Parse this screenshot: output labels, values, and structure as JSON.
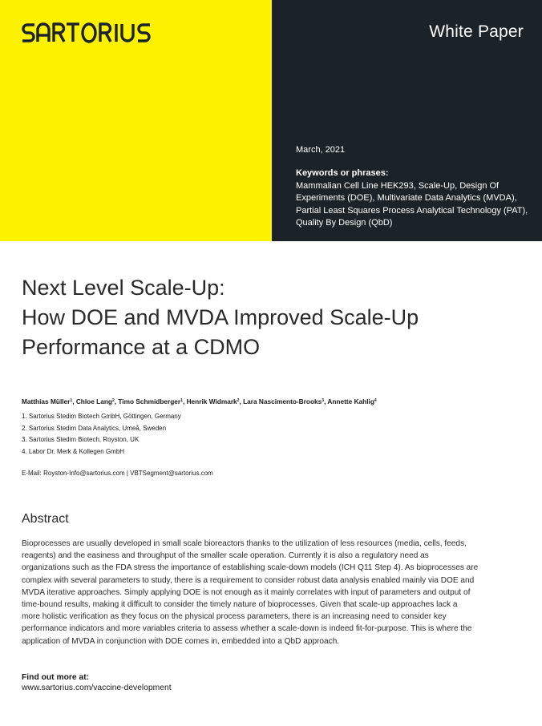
{
  "brand": {
    "logo_text": "SARTORIUS",
    "colors": {
      "yellow": "#fff200",
      "dark": "#1b2328"
    }
  },
  "header": {
    "doc_type": "White Paper",
    "date": "March, 2021",
    "keywords_heading": "Keywords or phrases:",
    "keywords_lines": [
      "Mammalian Cell Line HEK293, Scale-Up, Design Of",
      "Experiments (DOE), Multivariate Data Analytics (MVDA),",
      "Partial Least Squares Process Analytical Technology (PAT),",
      "Quality By Design (QbD)"
    ]
  },
  "title_lines": [
    "Next Level Scale-Up:",
    "How DOE and MVDA Improved Scale-Up",
    "Performance at a CDMO"
  ],
  "authors": [
    {
      "name": "Matthias Müller",
      "sup": "1"
    },
    {
      "name": "Chloe Lang",
      "sup": "2"
    },
    {
      "name": "Timo Schmidberger",
      "sup": "1"
    },
    {
      "name": "Henrik Widmark",
      "sup": "2"
    },
    {
      "name": "Lara Nascimento-Brooks",
      "sup": "3"
    },
    {
      "name": "Annette Kahlig",
      "sup": "4"
    }
  ],
  "affiliations": [
    "1. Sartorius Stedim Biotech GmbH, Göttingen, Germany",
    "2. Sartorius Stedim Data Analytics, Umeå, Sweden",
    "3. Sartorius Stedim Biotech, Royston, UK",
    "4. Labor Dr. Merk & Kollegen GmbH"
  ],
  "email_line": "E-Mail: Royston-Info@sartorius.com | VBTSegment@sartorius.com",
  "abstract": {
    "heading": "Abstract",
    "lines": [
      "Bioprocesses are usually developed in small scale bioreactors thanks to the utilization of less resources (media, cells, feeds,",
      "reagents) and the easiness and throughput of the smaller scale operation. Currently it is also a regulatory need as",
      "organizations such as the FDA stress the importance of establishing scale-down models (ICH Q11 Step 4). As bioprocesses are",
      "complex with several parameters to study, there is a requirement to consider robust data analysis enabled mainly via DOE and",
      "MVDA iterative approaches. Simply applying DOE is not enough as it mainly correlates with input of parameters and output of",
      "time-bound results, making it difficult to consider the timely nature of bioprocesses. Given that scale-up approaches lack a",
      "more holistic verification as they focus on the physical process parameters, there is an increasing need to consider key",
      "performance indicators and more variables criteria to assess whether a scale-down is indeed fit-for-purpose. This is where the",
      "application of MVDA in conjunction with DOE comes in, embedded into a QbD approach."
    ]
  },
  "find_out_more": {
    "heading": "Find out more at:",
    "url": "www.sartorius.com/vaccine-development"
  }
}
